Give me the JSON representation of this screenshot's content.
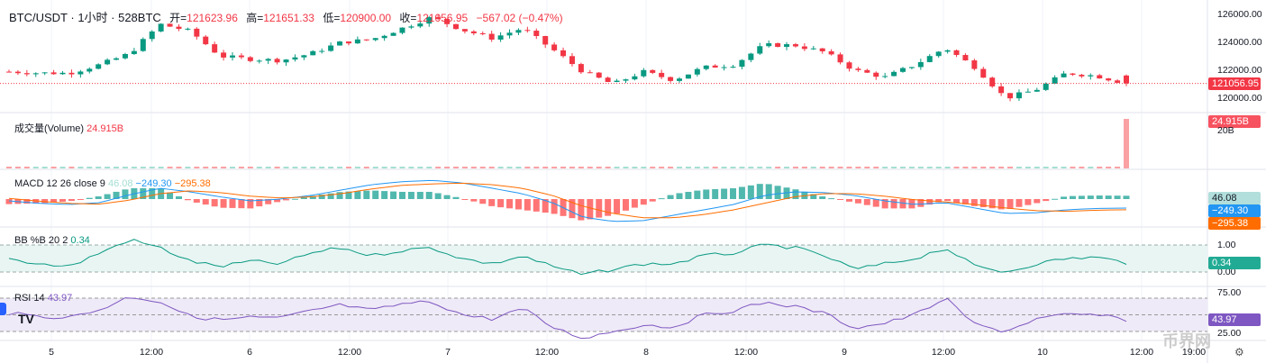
{
  "header": {
    "symbol": "BTC/USDT · 1小时 · 528BTC",
    "open_label": "开=",
    "open": "121623.96",
    "high_label": "高=",
    "high": "121651.33",
    "low_label": "低=",
    "low": "120900.00",
    "close_label": "收=",
    "close": "121056.95",
    "change": "−567.02 (−0.47%)"
  },
  "volume": {
    "label": "成交量(Volume)",
    "value": "24.915B",
    "axis": "20B"
  },
  "macd": {
    "label": "MACD 12 26 close 9",
    "hist": "46.08",
    "macd": "−249.30",
    "signal": "−295.38"
  },
  "bb": {
    "label": "BB %B 20 2",
    "value": "0.34",
    "ticks": [
      "1.00",
      "0.00"
    ]
  },
  "rsi": {
    "label": "RSI 14",
    "value": "43.97",
    "ticks": [
      "75.00",
      "25.00"
    ]
  },
  "price_axis": {
    "ticks": [
      "126000.00",
      "124000.00",
      "122000.00",
      "120000.00"
    ],
    "last": "121056.95"
  },
  "time_axis": [
    "5",
    "12:00",
    "6",
    "12:00",
    "7",
    "12:00",
    "8",
    "12:00",
    "9",
    "12:00",
    "10",
    "12:00",
    "19:00"
  ],
  "watermark": "币界网",
  "colors": {
    "up": "#089981",
    "down": "#f23645",
    "macd": "#2196f3",
    "signal": "#ff6d00",
    "bb": "#089981",
    "rsi": "#7e57c2"
  },
  "chart_data": {
    "type": "candlestick",
    "price_path": [
      121900,
      121800,
      121800,
      122400,
      123200,
      125300,
      124800,
      123000,
      122800,
      122700,
      123200,
      124000,
      124200,
      125000,
      125800,
      124900,
      124300,
      125000,
      123500,
      121900,
      121000,
      121900,
      121300,
      122200,
      122400,
      123800,
      123800,
      123300,
      122000,
      121500,
      122400,
      123600,
      122200,
      120000,
      120600,
      121800,
      121600,
      121057
    ],
    "ylim": [
      119500,
      126600
    ],
    "volume_last": 24.915,
    "macd_path": [
      -50,
      -120,
      -150,
      -100,
      120,
      300,
      200,
      60,
      -50,
      0,
      100,
      250,
      400,
      480,
      520,
      450,
      300,
      150,
      -100,
      -500,
      -620,
      -600,
      -450,
      -300,
      -150,
      100,
      200,
      180,
      100,
      -50,
      -150,
      -100,
      -250,
      -400,
      -380,
      -300,
      -260,
      -249.3
    ],
    "signal_path": [
      20,
      -60,
      -120,
      -140,
      -30,
      150,
      230,
      180,
      80,
      30,
      60,
      150,
      280,
      380,
      420,
      440,
      400,
      300,
      100,
      -200,
      -400,
      -520,
      -520,
      -430,
      -300,
      -120,
      60,
      150,
      150,
      80,
      -20,
      -80,
      -150,
      -250,
      -320,
      -340,
      -310,
      -295.38
    ],
    "bb_path": [
      0.5,
      0.3,
      0.2,
      0.7,
      1.2,
      0.9,
      0.4,
      0.2,
      0.4,
      0.3,
      0.7,
      0.9,
      0.6,
      0.8,
      0.9,
      0.5,
      0.3,
      0.6,
      0.2,
      -0.1,
      0.1,
      0.3,
      0.3,
      0.6,
      0.7,
      1.0,
      0.9,
      0.6,
      0.1,
      0.3,
      0.5,
      0.9,
      0.2,
      0.0,
      0.3,
      0.5,
      0.55,
      0.34
    ],
    "rsi_path": [
      52,
      48,
      47,
      56,
      72,
      66,
      48,
      44,
      47,
      46,
      55,
      62,
      55,
      63,
      66,
      50,
      45,
      58,
      35,
      22,
      30,
      38,
      35,
      50,
      55,
      65,
      60,
      52,
      34,
      40,
      50,
      70,
      38,
      30,
      45,
      50,
      50,
      43.97
    ]
  }
}
